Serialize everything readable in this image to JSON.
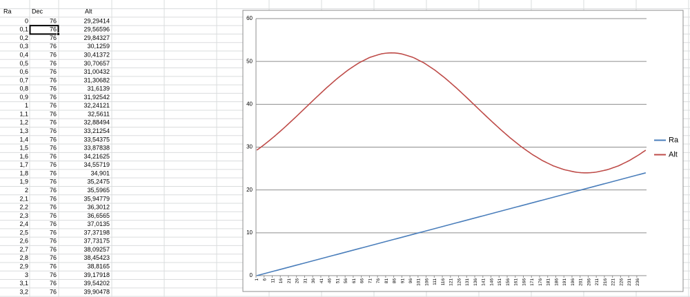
{
  "table": {
    "header": [
      "Ra",
      "Dec",
      "Alt"
    ],
    "rows": [
      [
        "0",
        "76",
        "29,29414"
      ],
      [
        "0,1",
        "76",
        "29,56596"
      ],
      [
        "0,2",
        "76",
        "29,84327"
      ],
      [
        "0,3",
        "76",
        "30,1259"
      ],
      [
        "0,4",
        "76",
        "30,41372"
      ],
      [
        "0,5",
        "76",
        "30,70657"
      ],
      [
        "0,6",
        "76",
        "31,00432"
      ],
      [
        "0,7",
        "76",
        "31,30682"
      ],
      [
        "0,8",
        "76",
        "31,6139"
      ],
      [
        "0,9",
        "76",
        "31,92542"
      ],
      [
        "1",
        "76",
        "32,24121"
      ],
      [
        "1,1",
        "76",
        "32,5611"
      ],
      [
        "1,2",
        "76",
        "32,88494"
      ],
      [
        "1,3",
        "76",
        "33,21254"
      ],
      [
        "1,4",
        "76",
        "33,54375"
      ],
      [
        "1,5",
        "76",
        "33,87838"
      ],
      [
        "1,6",
        "76",
        "34,21625"
      ],
      [
        "1,7",
        "76",
        "34,55719"
      ],
      [
        "1,8",
        "76",
        "34,901"
      ],
      [
        "1,9",
        "76",
        "35,2475"
      ],
      [
        "2",
        "76",
        "35,5965"
      ],
      [
        "2,1",
        "76",
        "35,94779"
      ],
      [
        "2,2",
        "76",
        "36,3012"
      ],
      [
        "2,3",
        "76",
        "36,6565"
      ],
      [
        "2,4",
        "76",
        "37,0135"
      ],
      [
        "2,5",
        "76",
        "37,37198"
      ],
      [
        "2,6",
        "76",
        "37,73175"
      ],
      [
        "2,7",
        "76",
        "38,09257"
      ],
      [
        "2,8",
        "76",
        "38,45423"
      ],
      [
        "2,9",
        "76",
        "38,8165"
      ],
      [
        "3",
        "76",
        "39,17918"
      ],
      [
        "3,1",
        "76",
        "39,54202"
      ],
      [
        "3,2",
        "76",
        "39,90478"
      ]
    ]
  },
  "chart_data": {
    "type": "line",
    "categories": [
      1,
      null,
      null,
      null,
      null,
      6,
      null,
      null,
      null,
      null,
      11,
      null,
      null,
      null,
      null,
      16,
      null,
      null,
      null,
      null,
      21,
      null,
      null,
      null,
      null,
      26,
      null,
      null,
      null,
      null,
      31,
      null,
      null,
      null,
      null,
      36,
      null,
      null,
      null,
      null,
      41,
      null,
      null,
      null,
      null,
      46,
      null,
      null,
      null,
      null,
      51,
      null,
      null,
      null,
      null,
      56,
      null,
      null,
      null,
      null,
      61,
      null,
      null,
      null,
      null,
      66,
      null,
      null,
      null,
      null,
      71,
      null,
      null,
      null,
      null,
      76,
      null,
      null,
      null,
      null,
      81,
      null,
      null,
      null,
      null,
      86,
      null,
      null,
      null,
      null,
      91,
      null,
      null,
      null,
      null,
      96,
      null,
      null,
      null,
      null,
      101,
      null,
      null,
      null,
      null,
      106,
      null,
      null,
      null,
      null,
      111,
      null,
      null,
      null,
      null,
      116,
      null,
      null,
      null,
      null,
      121,
      null,
      null,
      null,
      null,
      126,
      null,
      null,
      null,
      null,
      131,
      null,
      null,
      null,
      null,
      136,
      null,
      null,
      null,
      null,
      141,
      null,
      null,
      null,
      null,
      146,
      null,
      null,
      null,
      null,
      151,
      null,
      null,
      null,
      null,
      156,
      null,
      null,
      null,
      null,
      161,
      null,
      null,
      null,
      null,
      166,
      null,
      null,
      null,
      null,
      171,
      null,
      null,
      null,
      null,
      176,
      null,
      null,
      null,
      null,
      181,
      null,
      null,
      null,
      null,
      186,
      null,
      null,
      null,
      null,
      191,
      null,
      null,
      null,
      null,
      196,
      null,
      null,
      null,
      null,
      201,
      null,
      null,
      null,
      null,
      206,
      null,
      null,
      null,
      null,
      211,
      null,
      null,
      null,
      null,
      216,
      null,
      null,
      null,
      null,
      221,
      null,
      null,
      null,
      null,
      226,
      null,
      null,
      null,
      null,
      231,
      null,
      null,
      null,
      null,
      236,
      null,
      null,
      null,
      null,
      null
    ],
    "series": [
      {
        "name": "Ra",
        "color": "#4a7ebb",
        "values": [
          0,
          0.1,
          0.2,
          0.3,
          0.4,
          0.5,
          0.6,
          0.7,
          0.8,
          0.9,
          1,
          1.1,
          1.2,
          1.3,
          1.4,
          1.5,
          1.6,
          1.7,
          1.8,
          1.9,
          2,
          2.1,
          2.2,
          2.3,
          2.4,
          2.5,
          2.6,
          2.7,
          2.8,
          2.9,
          3,
          3.1,
          3.2,
          3.3,
          3.4,
          3.5,
          3.6,
          3.7,
          3.8,
          3.9,
          4,
          4.1,
          4.2,
          4.3,
          4.4,
          4.5,
          4.6,
          4.7,
          4.8,
          4.9,
          5,
          5.1,
          5.2,
          5.3,
          5.4,
          5.5,
          5.6,
          5.7,
          5.8,
          5.9,
          6,
          6.1,
          6.2,
          6.3,
          6.4,
          6.5,
          6.6,
          6.7,
          6.8,
          6.9,
          7,
          7.1,
          7.2,
          7.3,
          7.4,
          7.5,
          7.6,
          7.7,
          7.8,
          7.9,
          8,
          8.1,
          8.2,
          8.3,
          8.4,
          8.5,
          8.6,
          8.7,
          8.8,
          8.9,
          9,
          9.1,
          9.2,
          9.3,
          9.4,
          9.5,
          9.6,
          9.7,
          9.8,
          9.9,
          10,
          10.1,
          10.2,
          10.3,
          10.4,
          10.5,
          10.6,
          10.7,
          10.8,
          10.9,
          11,
          11.1,
          11.2,
          11.3,
          11.4,
          11.5,
          11.6,
          11.7,
          11.8,
          11.9,
          12,
          12.1,
          12.2,
          12.3,
          12.4,
          12.5,
          12.6,
          12.7,
          12.8,
          12.9,
          13,
          13.1,
          13.2,
          13.3,
          13.4,
          13.5,
          13.6,
          13.7,
          13.8,
          13.9,
          14,
          14.1,
          14.2,
          14.3,
          14.4,
          14.5,
          14.6,
          14.7,
          14.8,
          14.9,
          15,
          15.1,
          15.2,
          15.3,
          15.4,
          15.5,
          15.6,
          15.7,
          15.8,
          15.9,
          16,
          16.1,
          16.2,
          16.3,
          16.4,
          16.5,
          16.6,
          16.7,
          16.8,
          16.9,
          17,
          17.1,
          17.2,
          17.3,
          17.4,
          17.5,
          17.6,
          17.7,
          17.8,
          17.9,
          18,
          18.1,
          18.2,
          18.3,
          18.4,
          18.5,
          18.6,
          18.7,
          18.8,
          18.9,
          19,
          19.1,
          19.2,
          19.3,
          19.4,
          19.5,
          19.6,
          19.7,
          19.8,
          19.9,
          20,
          20.1,
          20.2,
          20.3,
          20.4,
          20.5,
          20.6,
          20.7,
          20.8,
          20.9,
          21,
          21.1,
          21.2,
          21.3,
          21.4,
          21.5,
          21.6,
          21.7,
          21.8,
          21.9,
          22,
          22.1,
          22.2,
          22.3,
          22.4,
          22.5,
          22.6,
          22.7,
          22.8,
          22.9,
          23,
          23.1,
          23.2,
          23.3,
          23.4,
          23.5,
          23.6,
          23.7,
          23.8,
          23.9,
          24
        ]
      },
      {
        "name": "Alt",
        "color": "#be4b48",
        "values": [
          29.29414,
          29.56596,
          29.84327,
          30.1259,
          30.41372,
          30.70657,
          31.00432,
          31.30682,
          31.6139,
          31.92542,
          32.24121,
          32.5611,
          32.88494,
          33.21254,
          33.54375,
          33.87838,
          34.21625,
          34.55719,
          34.901,
          35.2475,
          35.5965,
          35.94779,
          36.3012,
          36.6565,
          37.0135,
          37.37198,
          37.73175,
          38.09257,
          38.45423,
          38.8165,
          39.17918,
          39.54202,
          39.90478,
          40.27,
          40.63,
          40.99,
          41.35,
          41.71,
          42.06,
          42.42,
          42.77,
          43.12,
          43.47,
          43.83,
          44.16,
          44.49,
          44.82,
          45.15,
          45.48,
          45.81,
          46.13,
          46.42,
          46.72,
          47.02,
          47.31,
          47.61,
          47.9,
          48.17,
          48.42,
          48.67,
          48.92,
          49.17,
          49.41,
          49.66,
          49.86,
          50.05,
          50.24,
          50.43,
          50.62,
          50.81,
          50.98,
          51.1,
          51.22,
          51.33,
          51.45,
          51.57,
          51.68,
          51.78,
          51.84,
          51.9,
          51.94,
          51.97,
          51.99,
          52,
          51.99,
          51.98,
          51.95,
          51.91,
          51.85,
          51.79,
          51.7,
          51.58,
          51.47,
          51.35,
          51.23,
          51.11,
          51,
          50.84,
          50.65,
          50.46,
          50.26,
          50.07,
          49.88,
          49.69,
          49.45,
          49.2,
          48.95,
          48.7,
          48.45,
          48.2,
          47.94,
          47.65,
          47.35,
          47.05,
          46.76,
          46.46,
          46.17,
          45.85,
          45.52,
          45.19,
          44.86,
          44.53,
          44.2,
          43.87,
          43.52,
          43.17,
          42.82,
          42.46,
          42.11,
          41.76,
          41.4,
          41.04,
          40.68,
          40.31,
          39.95,
          39.59,
          39.22,
          38.86,
          38.5,
          38.14,
          37.78,
          37.42,
          37.06,
          36.7,
          36.35,
          36,
          35.65,
          35.31,
          34.96,
          34.61,
          34.26,
          33.93,
          33.6,
          33.27,
          32.94,
          32.61,
          32.28,
          31.97,
          31.67,
          31.37,
          31.06,
          30.76,
          30.46,
          30.16,
          29.89,
          29.62,
          29.35,
          29.08,
          28.82,
          28.55,
          28.29,
          28.06,
          27.83,
          27.61,
          27.38,
          27.16,
          26.92,
          26.72,
          26.54,
          26.35,
          26.17,
          25.99,
          25.81,
          25.62,
          25.49,
          25.35,
          25.22,
          25.09,
          24.96,
          24.83,
          24.71,
          24.63,
          24.55,
          24.47,
          24.38,
          24.3,
          24.22,
          24.16,
          24.11,
          24.07,
          24.04,
          24.02,
          24,
          24,
          24,
          24.02,
          24.04,
          24.07,
          24.1,
          24.15,
          24.21,
          24.29,
          24.37,
          24.45,
          24.53,
          24.62,
          24.7,
          24.81,
          24.94,
          25.07,
          25.21,
          25.34,
          25.47,
          25.6,
          25.78,
          25.96,
          26.15,
          26.33,
          26.51,
          26.7,
          26.89,
          27.12,
          27.35,
          27.58,
          27.8,
          28.03,
          28.26,
          28.51,
          28.78,
          29.03,
          29.29
        ]
      }
    ],
    "ylim": [
      0,
      60
    ],
    "yticks": [
      0,
      10,
      20,
      30,
      40,
      50,
      60
    ],
    "grid": true,
    "legend": "right"
  }
}
